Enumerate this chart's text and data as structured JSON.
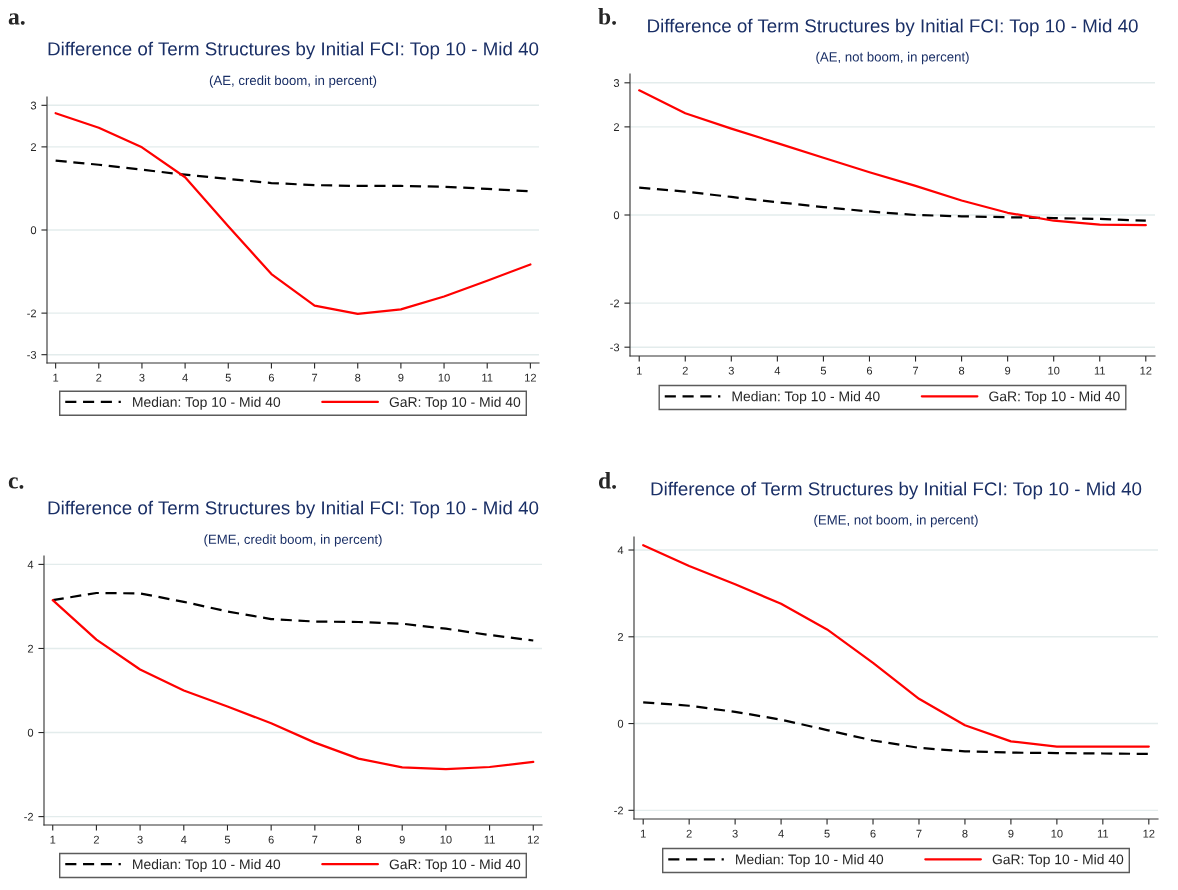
{
  "chart_data": [
    {
      "type": "line",
      "title": "Difference of Term Structures by Initial FCI: Top 10 - Mid 40",
      "subtitle": "(AE, credit boom, in percent)",
      "annotations": [
        "a."
      ],
      "x": [
        1,
        2,
        3,
        4,
        5,
        6,
        7,
        8,
        9,
        10,
        11,
        12
      ],
      "xlim": [
        0.8,
        12.2
      ],
      "xticks": [
        1,
        2,
        3,
        4,
        5,
        6,
        7,
        8,
        9,
        10,
        11,
        12
      ],
      "ylim": [
        -3.2,
        3.2
      ],
      "yticks": [
        -3,
        -2,
        0,
        2,
        3
      ],
      "grid": "y",
      "legend": "bottom",
      "series": [
        {
          "name": "Median: Top 10 - Mid 40",
          "color": "#000000",
          "line_style": "dashed",
          "values": [
            1.67,
            1.57,
            1.45,
            1.33,
            1.23,
            1.13,
            1.08,
            1.06,
            1.06,
            1.04,
            0.99,
            0.93
          ]
        },
        {
          "name": "GaR: Top 10 - Mid 40",
          "color": "#ff0000",
          "line_style": "solid",
          "values": [
            2.81,
            2.46,
            1.99,
            1.27,
            0.09,
            -1.06,
            -1.82,
            -2.02,
            -1.91,
            -1.6,
            -1.22,
            -0.83
          ]
        }
      ]
    },
    {
      "type": "line",
      "title": "Difference of Term Structures by Initial FCI: Top 10 - Mid 40",
      "subtitle": "(AE, not boom, in percent)",
      "annotations": [
        "b."
      ],
      "x": [
        1,
        2,
        3,
        4,
        5,
        6,
        7,
        8,
        9,
        10,
        11,
        12
      ],
      "xlim": [
        0.8,
        12.2
      ],
      "xticks": [
        1,
        2,
        3,
        4,
        5,
        6,
        7,
        8,
        9,
        10,
        11,
        12
      ],
      "ylim": [
        -3.2,
        3.2
      ],
      "yticks": [
        -3,
        -2,
        0,
        2,
        3
      ],
      "grid": "y",
      "legend": "bottom",
      "series": [
        {
          "name": "Median: Top 10 - Mid 40",
          "color": "#000000",
          "line_style": "dashed",
          "values": [
            0.62,
            0.53,
            0.41,
            0.29,
            0.18,
            0.08,
            0.0,
            -0.03,
            -0.05,
            -0.07,
            -0.09,
            -0.13
          ]
        },
        {
          "name": "GaR: Top 10 - Mid 40",
          "color": "#ff0000",
          "line_style": "solid",
          "values": [
            2.83,
            2.31,
            1.96,
            1.63,
            1.3,
            0.97,
            0.66,
            0.33,
            0.05,
            -0.13,
            -0.22,
            -0.23
          ]
        }
      ]
    },
    {
      "type": "line",
      "title": "Difference of Term Structures by Initial FCI: Top 10 - Mid 40",
      "subtitle": "(EME, credit boom, in percent)",
      "annotations": [
        "c."
      ],
      "x": [
        1,
        2,
        3,
        4,
        5,
        6,
        7,
        8,
        9,
        10,
        11,
        12
      ],
      "xlim": [
        0.8,
        12.2
      ],
      "xticks": [
        1,
        2,
        3,
        4,
        5,
        6,
        7,
        8,
        9,
        10,
        11,
        12
      ],
      "ylim": [
        -2.2,
        4.2
      ],
      "yticks": [
        -2,
        0,
        2,
        4
      ],
      "grid": "y",
      "legend": "bottom",
      "series": [
        {
          "name": "Median: Top 10 - Mid 40",
          "color": "#000000",
          "line_style": "dashed",
          "values": [
            3.15,
            3.32,
            3.31,
            3.11,
            2.88,
            2.7,
            2.64,
            2.63,
            2.59,
            2.47,
            2.32,
            2.19
          ]
        },
        {
          "name": "GaR: Top 10 - Mid 40",
          "color": "#ff0000",
          "line_style": "solid",
          "values": [
            3.15,
            2.21,
            1.5,
            1.0,
            0.62,
            0.22,
            -0.24,
            -0.62,
            -0.83,
            -0.87,
            -0.82,
            -0.7
          ]
        }
      ]
    },
    {
      "type": "line",
      "title": "Difference of Term Structures by Initial FCI: Top 10 - Mid 40",
      "subtitle": "(EME, not boom, in percent)",
      "annotations": [
        "d."
      ],
      "x": [
        1,
        2,
        3,
        4,
        5,
        6,
        7,
        8,
        9,
        10,
        11,
        12
      ],
      "xlim": [
        0.8,
        12.2
      ],
      "xticks": [
        1,
        2,
        3,
        4,
        5,
        6,
        7,
        8,
        9,
        10,
        11,
        12
      ],
      "ylim": [
        -2.2,
        4.3
      ],
      "yticks": [
        -2,
        0,
        2,
        4
      ],
      "grid": "y",
      "legend": "bottom",
      "series": [
        {
          "name": "Median: Top 10 - Mid 40",
          "color": "#000000",
          "line_style": "dashed",
          "values": [
            0.49,
            0.41,
            0.27,
            0.09,
            -0.15,
            -0.39,
            -0.56,
            -0.64,
            -0.67,
            -0.68,
            -0.69,
            -0.7
          ]
        },
        {
          "name": "GaR: Top 10 - Mid 40",
          "color": "#ff0000",
          "line_style": "solid",
          "values": [
            4.11,
            3.63,
            3.21,
            2.76,
            2.17,
            1.4,
            0.57,
            -0.04,
            -0.41,
            -0.53,
            -0.53,
            -0.53
          ]
        }
      ]
    }
  ]
}
